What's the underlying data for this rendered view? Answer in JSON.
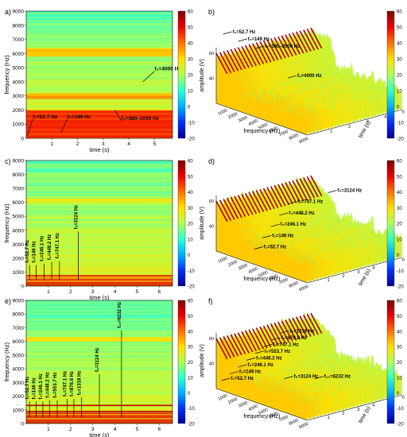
{
  "figure": {
    "panels": [
      {
        "id": "a",
        "label": "a)",
        "kind": "spectrogram-2d",
        "xlabel": "time (s)",
        "ylabel": "frequency (Hz)",
        "xticks": [
          1,
          2,
          3,
          4,
          5
        ],
        "yticks": [
          0,
          1000,
          2000,
          3000,
          4000,
          5000,
          6000,
          7000,
          8000,
          9000
        ],
        "xlim": [
          0,
          5.7
        ],
        "ylim": [
          0,
          9000
        ],
        "annotations": [
          {
            "text": "f₁=52.7 Hz",
            "t": 0.25,
            "f": 1400,
            "tt": 0.05,
            "tf": 200
          },
          {
            "text": "f₂=149 Hz",
            "t": 1.6,
            "f": 1400,
            "tt": 1.35,
            "tf": 400
          },
          {
            "text": "f₃=4000 Hz",
            "t": 5.0,
            "f": 4800,
            "tt": 4.55,
            "tf": 4000
          },
          {
            "text": "f₄=380–2000 Hz",
            "t": 3.7,
            "f": 1300,
            "tt": 3.45,
            "tf": 2000
          }
        ]
      },
      {
        "id": "b",
        "label": "b)",
        "kind": "waterfall-3d",
        "xlabel": "frequency (Hz)",
        "ylabel": "time (s)",
        "zlabel": "amplitude (V)",
        "xticks": [
          1000,
          2000,
          3000,
          4000,
          5000,
          6000,
          7000,
          8000,
          9000
        ],
        "yticks": [
          1,
          2,
          3,
          4,
          5
        ],
        "zticks": [
          40,
          60
        ],
        "annotations": [
          {
            "text": "f₁=52.7 Hz",
            "t": 0.2,
            "f": 1300
          },
          {
            "text": "f₂=149 Hz",
            "t": 0.15,
            "f": 1700
          },
          {
            "text": "f₄=380–2000 Hz",
            "t": 0.1,
            "f": 2300
          },
          {
            "text": "f₃=4000 Hz",
            "t": 0.0,
            "f": 4200
          }
        ]
      },
      {
        "id": "c",
        "label": "c)",
        "kind": "spectrogram-2d",
        "xlabel": "time (s)",
        "ylabel": "frequency (Hz)",
        "xticks": [
          1,
          2,
          3,
          4,
          5,
          6
        ],
        "yticks": [
          0,
          1000,
          2000,
          3000,
          4000,
          5000,
          6000,
          7000,
          8000,
          9000
        ],
        "xlim": [
          0,
          6.6
        ],
        "ylim": [
          0,
          9000
        ],
        "annotations": [
          {
            "text": "f₁=52.7 Hz",
            "t": 0.15,
            "f": 1500,
            "vertical": true
          },
          {
            "text": "f₂=149 Hz",
            "t": 0.45,
            "f": 1500,
            "vertical": true
          },
          {
            "text": "f₃=246.1 Hz",
            "t": 0.8,
            "f": 1600,
            "vertical": true
          },
          {
            "text": "f₄=448.2 Hz",
            "t": 1.15,
            "f": 1700,
            "vertical": true
          },
          {
            "text": "f₅=747.1 Hz",
            "t": 1.5,
            "f": 1800,
            "vertical": true
          },
          {
            "text": "f₆=3124 Hz",
            "t": 2.35,
            "f": 3900,
            "vertical": true
          }
        ]
      },
      {
        "id": "d",
        "label": "d)",
        "kind": "waterfall-3d",
        "xlabel": "frequency (Hz)",
        "ylabel": "time (s)",
        "zlabel": "amplitude (V)",
        "xticks": [
          1000,
          2000,
          3000,
          4000,
          5000,
          6000,
          7000,
          8000,
          9000
        ],
        "yticks": [
          1,
          2,
          3,
          4,
          5,
          6
        ],
        "zticks": [
          40,
          60
        ],
        "annotations": [
          {
            "text": "f₆=3124 Hz",
            "t": 0
          },
          {
            "text": "f₅=747.1 Hz",
            "t": 1
          },
          {
            "text": "f₄=448.2 Hz",
            "t": 2
          },
          {
            "text": "f₃=246.1 Hz",
            "t": 3
          },
          {
            "text": "f₂=149 Hz",
            "t": 4
          },
          {
            "text": "f₁=52.7 Hz",
            "t": 5
          }
        ]
      },
      {
        "id": "e",
        "label": "e)",
        "kind": "spectrogram-2d",
        "xlabel": "time (s)",
        "ylabel": "frequency (Hz)",
        "xticks": [
          1,
          2,
          3,
          4,
          5,
          6
        ],
        "yticks": [
          0,
          1000,
          2000,
          3000,
          4000,
          5000,
          6000,
          7000,
          8000,
          9000
        ],
        "xlim": [
          0,
          6.6
        ],
        "ylim": [
          0,
          9000
        ],
        "annotations": [
          {
            "text": "f₁=52.7 Hz",
            "t": 0.15,
            "f": 1600,
            "vertical": true
          },
          {
            "text": "f₂=149 Hz",
            "t": 0.45,
            "f": 1600,
            "vertical": true
          },
          {
            "text": "f₃=246.1 Hz",
            "t": 0.75,
            "f": 1600,
            "vertical": true
          },
          {
            "text": "f₄=448.2 Hz",
            "t": 1.05,
            "f": 1700,
            "vertical": true
          },
          {
            "text": "f₅=553.7 Hz",
            "t": 1.4,
            "f": 1700,
            "vertical": true
          },
          {
            "text": "f₆=747.1 Hz",
            "t": 1.85,
            "f": 1800,
            "vertical": true
          },
          {
            "text": "f₇=878.9 Hz",
            "t": 2.15,
            "f": 1800,
            "vertical": true
          },
          {
            "text": "f₈=1318 Hz",
            "t": 2.5,
            "f": 1900,
            "vertical": true
          },
          {
            "text": "f₉=3124 Hz",
            "t": 3.3,
            "f": 3600,
            "vertical": true
          },
          {
            "text": "f₁₀=6232 Hz",
            "t": 4.3,
            "f": 6800,
            "vertical": true
          }
        ]
      },
      {
        "id": "f",
        "label": "f)",
        "kind": "waterfall-3d",
        "xlabel": "frequency (Hz)",
        "ylabel": "time (s)",
        "zlabel": "amplitude (V)",
        "xticks": [
          1000,
          2000,
          3000,
          4000,
          5000,
          6000,
          7000,
          8000,
          9000
        ],
        "yticks": [
          1,
          2,
          3,
          4,
          5,
          6
        ],
        "zticks": [
          40,
          60
        ],
        "annotations": [
          {
            "text": "f₈=1318 Hz",
            "t": 0
          },
          {
            "text": "f₇=878.9 Hz",
            "t": 1
          },
          {
            "text": "f₆=747.1 Hz",
            "t": 2
          },
          {
            "text": "f₅=553.7 Hz",
            "t": 3
          },
          {
            "text": "f₄=448.2 Hz",
            "t": 4
          },
          {
            "text": "f₃=246.1 Hz",
            "t": 5
          },
          {
            "text": "f₂=149 Hz",
            "t": 6
          },
          {
            "text": "f₁=52.7 Hz",
            "t": 7
          },
          {
            "text": "f₉=3124 Hz",
            "t": 8
          },
          {
            "text": "f₁₀=6232 Hz",
            "t": 9
          }
        ]
      }
    ],
    "colorbar_ticks": [
      60,
      50,
      40,
      30,
      20,
      10,
      0,
      -10,
      -20
    ],
    "colormap": [
      "#00008f",
      "#0030ff",
      "#00b0ff",
      "#30ffd0",
      "#b0ff50",
      "#ffe000",
      "#ff7000",
      "#ef0000",
      "#800000"
    ]
  },
  "chart_data": [
    {
      "type": "heatmap",
      "panel": "a",
      "xlabel": "time (s)",
      "ylabel": "frequency (Hz)",
      "xlim": [
        0,
        5.7
      ],
      "ylim": [
        0,
        9000
      ],
      "colorbar": [
        -20,
        60
      ],
      "bands_hz": [
        52.7,
        149,
        380,
        2000,
        4000
      ],
      "note_labels": [
        "f₁=52.7 Hz",
        "f₂=149 Hz",
        "f₃=4000 Hz",
        "f₄=380–2000 Hz"
      ]
    },
    {
      "type": "area",
      "panel": "b",
      "xlabel": "frequency (Hz)",
      "ylabel": "time (s)",
      "zlabel": "amplitude (V)",
      "xlim": [
        0,
        9000
      ],
      "ylim": [
        0,
        5.7
      ],
      "zlim": [
        20,
        60
      ]
    },
    {
      "type": "heatmap",
      "panel": "c",
      "xlabel": "time (s)",
      "ylabel": "frequency (Hz)",
      "xlim": [
        0,
        6.6
      ],
      "ylim": [
        0,
        9000
      ],
      "colorbar": [
        -20,
        60
      ],
      "bands_hz": [
        52.7,
        149,
        246.1,
        448.2,
        747.1,
        3124
      ]
    },
    {
      "type": "area",
      "panel": "d",
      "xlabel": "frequency (Hz)",
      "ylabel": "time (s)",
      "zlabel": "amplitude (V)",
      "xlim": [
        0,
        9000
      ],
      "ylim": [
        0,
        6.6
      ],
      "zlim": [
        20,
        60
      ]
    },
    {
      "type": "heatmap",
      "panel": "e",
      "xlabel": "time (s)",
      "ylabel": "frequency (Hz)",
      "xlim": [
        0,
        6.6
      ],
      "ylim": [
        0,
        9000
      ],
      "colorbar": [
        -20,
        60
      ],
      "bands_hz": [
        52.7,
        149,
        246.1,
        448.2,
        553.7,
        747.1,
        878.9,
        1318,
        3124,
        6232
      ]
    },
    {
      "type": "area",
      "panel": "f",
      "xlabel": "frequency (Hz)",
      "ylabel": "time (s)",
      "zlabel": "amplitude (V)",
      "xlim": [
        0,
        9000
      ],
      "ylim": [
        0,
        6.6
      ],
      "zlim": [
        20,
        60
      ]
    }
  ]
}
